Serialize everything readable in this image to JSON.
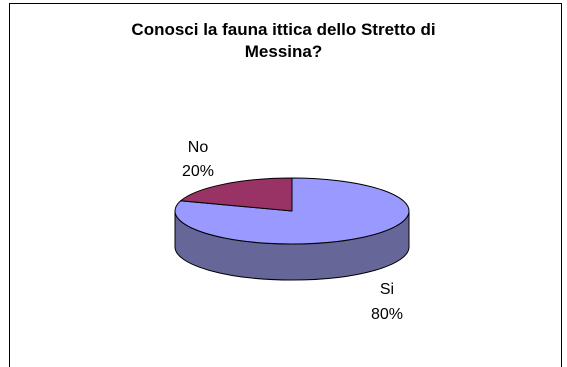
{
  "chart_data": {
    "type": "pie",
    "style": "3d",
    "title": "Conosci la fauna ittica dello Stretto di Messina?",
    "title_lines": [
      "Conosci la fauna ittica dello Stretto di",
      "Messina?"
    ],
    "categories": [
      "Si",
      "No"
    ],
    "values": [
      80,
      20
    ],
    "labels": [
      {
        "category": "Si",
        "percent": "80%"
      },
      {
        "category": "No",
        "percent": "20%"
      }
    ],
    "colors": {
      "Si": {
        "top": "#9999ff",
        "side": "#666699"
      },
      "No": {
        "top": "#993366",
        "side": "#66223f"
      }
    }
  }
}
